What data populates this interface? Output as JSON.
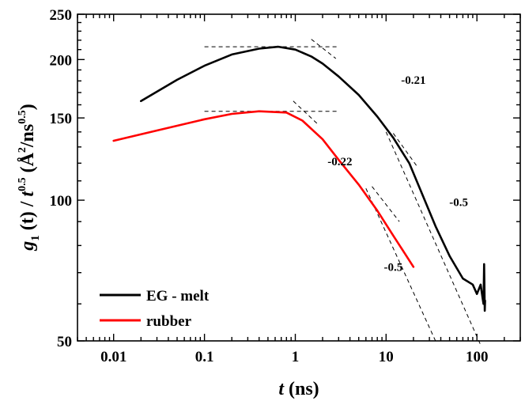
{
  "chart_data": {
    "type": "line",
    "xscale": "log",
    "yscale": "log",
    "xlim": [
      0.004,
      300
    ],
    "ylim": [
      50,
      250
    ],
    "xticks": [
      0.01,
      0.1,
      1,
      10,
      100
    ],
    "xtick_labels": [
      "0.01",
      "0.1",
      "1",
      "10",
      "100"
    ],
    "yticks": [
      50,
      100,
      150,
      200,
      250
    ],
    "ytick_labels": [
      "50",
      "100",
      "150",
      "200",
      "250"
    ],
    "xlabel": {
      "main": "t",
      "unit": " (ns)"
    },
    "ylabel": {
      "g": "g",
      "g_sub": "1",
      "t_arg": " (t) / ",
      "t": "t",
      "t_sup": "0.5",
      "unit_open": "  (Å",
      "unit_sup": "2",
      "unit_mid": "/ns",
      "unit_sup2": "0.5",
      "unit_close": ")"
    },
    "series": [
      {
        "name": "EG - melt",
        "color": "#000000",
        "x": [
          0.02,
          0.05,
          0.1,
          0.2,
          0.4,
          0.65,
          1.0,
          1.5,
          2.0,
          3.0,
          5.0,
          8.0,
          12.0,
          18.0,
          25.0,
          35.0,
          50.0,
          70.0,
          90.0,
          100.0,
          110.0,
          115.0,
          118.0,
          120.0,
          122.0,
          123.0
        ],
        "y": [
          163,
          181,
          194,
          205,
          211,
          213,
          210,
          203,
          196,
          184,
          168,
          151,
          136,
          120,
          103,
          88,
          76,
          68,
          66,
          63,
          66,
          62,
          60,
          73,
          58,
          61
        ]
      },
      {
        "name": "rubber",
        "color": "#ff0000",
        "x": [
          0.01,
          0.03,
          0.1,
          0.2,
          0.4,
          0.8,
          1.2,
          2.0,
          3.0,
          5.0,
          8.0,
          12.0,
          16.0,
          20.0
        ],
        "y": [
          134,
          141,
          149,
          153,
          155,
          154,
          148,
          135,
          122,
          108,
          95,
          84,
          77,
          72
        ]
      }
    ],
    "guide_lines": [
      {
        "x": [
          0.1,
          3.0
        ],
        "y": [
          213,
          213
        ]
      },
      {
        "x": [
          1.5,
          2.8
        ],
        "y": [
          221,
          201
        ]
      },
      {
        "x": [
          12.0,
          22.0
        ],
        "y": [
          139,
          118
        ]
      },
      {
        "x": [
          10.0,
          110.0
        ],
        "y": [
          140,
          49
        ]
      },
      {
        "x": [
          0.1,
          3.0
        ],
        "y": [
          155,
          155
        ]
      },
      {
        "x": [
          0.95,
          1.8
        ],
        "y": [
          163,
          145
        ]
      },
      {
        "x": [
          7.0,
          14.0
        ],
        "y": [
          107,
          90
        ]
      },
      {
        "x": [
          6.0,
          35.0
        ],
        "y": [
          106,
          50
        ]
      }
    ],
    "annotations": [
      {
        "text": "-0.21",
        "x": 20,
        "y": 181
      },
      {
        "text": "-0.22",
        "x": 3.1,
        "y": 121
      },
      {
        "text": "-0.5",
        "x": 63,
        "y": 99
      },
      {
        "text": "-0.5",
        "x": 12,
        "y": 72
      }
    ],
    "legend": {
      "position": "bottom-left",
      "entries": [
        "EG - melt",
        "rubber"
      ]
    }
  }
}
